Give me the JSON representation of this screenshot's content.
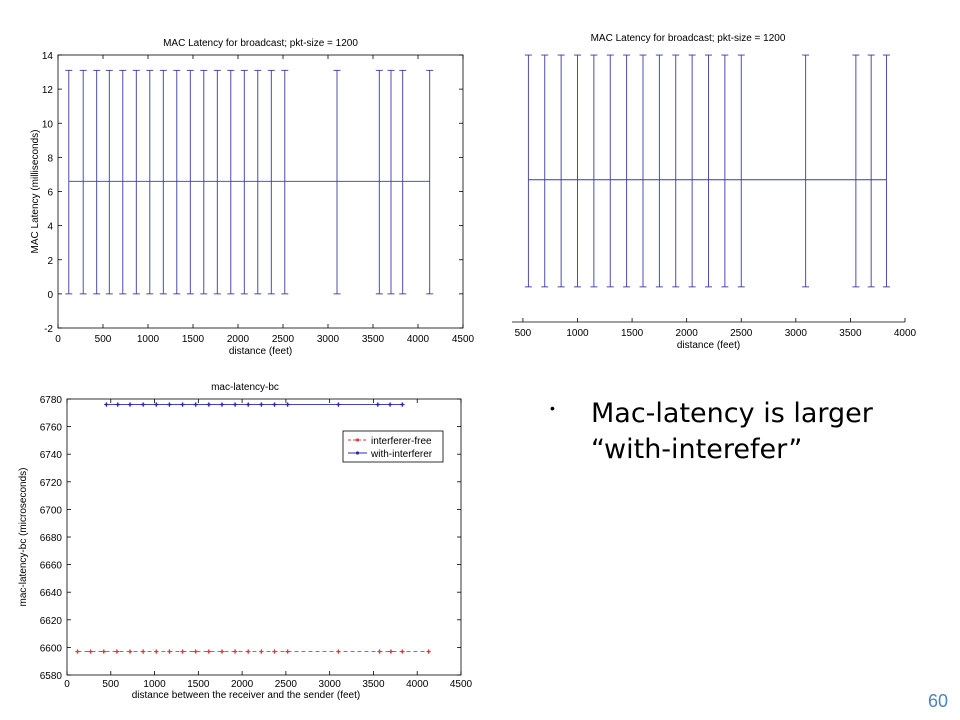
{
  "chart_data": [
    {
      "type": "errorbar",
      "title": "MAC Latency for broadcast;   pkt-size = 1200",
      "xlabel": "distance (feet)",
      "ylabel": "MAC Latency (milliseconds)",
      "xlim": [
        0,
        4500
      ],
      "ylim": [
        -2,
        14
      ],
      "xticks": [
        0,
        500,
        1000,
        1500,
        2000,
        2500,
        3000,
        3500,
        4000,
        4500
      ],
      "yticks": [
        -2,
        0,
        2,
        4,
        6,
        8,
        10,
        12,
        14
      ],
      "x": [
        120,
        280,
        430,
        570,
        720,
        870,
        1020,
        1170,
        1320,
        1470,
        1620,
        1770,
        1920,
        2070,
        2220,
        2370,
        2520,
        3100,
        3570,
        3700,
        3830,
        4130
      ],
      "mean": 6.6,
      "lower": 0,
      "upper": 13.1,
      "line_color": "#3a3aa8"
    },
    {
      "type": "errorbar",
      "title": "MAC Latency for broadcast;   pkt-size = 1200",
      "xlabel": "distance (feet)",
      "xlim": [
        400,
        4000
      ],
      "xticks": [
        500,
        1000,
        1500,
        2000,
        2500,
        3000,
        3500,
        4000
      ],
      "ylim": [
        -2,
        14
      ],
      "x": [
        550,
        700,
        850,
        1000,
        1150,
        1300,
        1450,
        1600,
        1750,
        1900,
        2050,
        2200,
        2350,
        2500,
        3090,
        3550,
        3690,
        3830
      ],
      "mean": 6.1,
      "lower": 0,
      "upper": 13.2,
      "line_color": "#3a3aa8"
    },
    {
      "type": "line",
      "title": "mac-latency-bc",
      "xlabel": "distance between the receiver and the sender (feet)",
      "ylabel": "mac-latency-bc (microseconds)",
      "xlim": [
        0,
        4500
      ],
      "ylim": [
        6580,
        6780
      ],
      "xticks": [
        0,
        500,
        1000,
        1500,
        2000,
        2500,
        3000,
        3500,
        4000,
        4500
      ],
      "yticks": [
        6580,
        6600,
        6620,
        6640,
        6660,
        6680,
        6700,
        6720,
        6740,
        6760,
        6780
      ],
      "legend_position": "top-right",
      "series": [
        {
          "name": "interferer-free",
          "color": "#e23a3a",
          "dashed": true,
          "x": [
            120,
            270,
            420,
            570,
            720,
            870,
            1020,
            1170,
            1320,
            1470,
            1620,
            1770,
            1920,
            2070,
            2220,
            2370,
            2520,
            3100,
            3570,
            3700,
            3830,
            4130
          ],
          "y": [
            6597,
            6597,
            6597,
            6597,
            6597,
            6597,
            6597,
            6597,
            6597,
            6597,
            6597,
            6597,
            6597,
            6597,
            6597,
            6597,
            6597,
            6597,
            6597,
            6597,
            6597,
            6597
          ]
        },
        {
          "name": "with-interferer",
          "color": "#2b2bb0",
          "dashed": false,
          "x": [
            450,
            580,
            720,
            870,
            1020,
            1170,
            1320,
            1470,
            1620,
            1770,
            1920,
            2070,
            2220,
            2370,
            2520,
            3100,
            3550,
            3690,
            3830
          ],
          "y": [
            6776,
            6776,
            6776,
            6776,
            6776,
            6776,
            6776,
            6776,
            6776,
            6776,
            6776,
            6776,
            6776,
            6776,
            6776,
            6776,
            6776,
            6776,
            6776
          ]
        }
      ]
    }
  ],
  "bullet": {
    "dot": "•",
    "text": "Mac-latency is larger “with-interefer”"
  },
  "page_number": "60"
}
